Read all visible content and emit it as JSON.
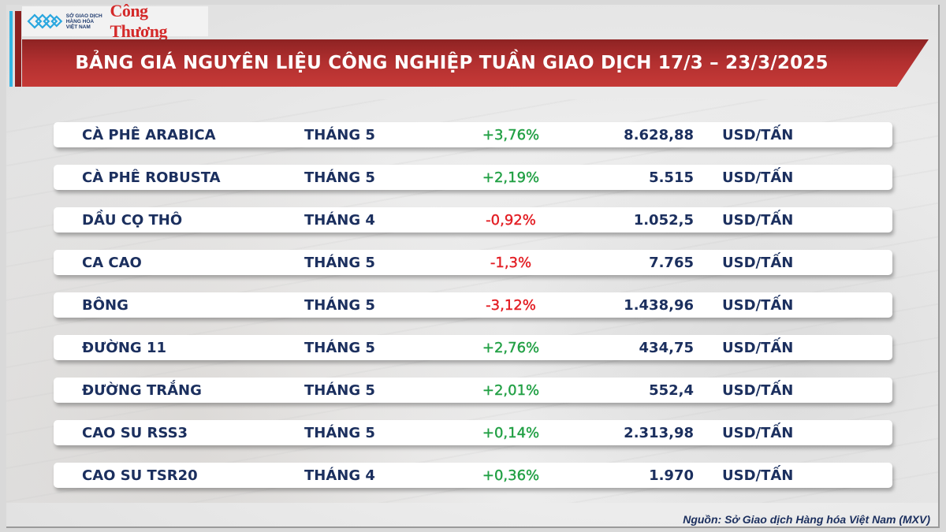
{
  "header": {
    "logo_org_line1": "SỞ GIAO DỊCH",
    "logo_org_line2": "HÀNG HÓA",
    "logo_org_line3": "VIỆT NAM",
    "logo_brand": "Công Thương",
    "title": "BẢNG GIÁ NGUYÊN LIỆU CÔNG NGHIỆP TUẦN GIAO DỊCH 17/3 – 23/3/2025"
  },
  "colors": {
    "banner_red": "#b33030",
    "text_navy": "#1b2f5e",
    "up_green": "#22a045",
    "down_red": "#e31e24",
    "accent_blue": "#33b5e5"
  },
  "rows": [
    {
      "name": "CÀ PHÊ ARABICA",
      "month": "THÁNG 5",
      "change": "+3,76%",
      "direction": "up",
      "price": "8.628,88",
      "unit": "USD/TẤN"
    },
    {
      "name": "CÀ PHÊ ROBUSTA",
      "month": "THÁNG 5",
      "change": "+2,19%",
      "direction": "up",
      "price": "5.515",
      "unit": "USD/TẤN"
    },
    {
      "name": "DẦU CỌ THÔ",
      "month": "THÁNG 4",
      "change": "-0,92%",
      "direction": "down",
      "price": "1.052,5",
      "unit": "USD/TẤN"
    },
    {
      "name": "CA CAO",
      "month": "THÁNG 5",
      "change": "-1,3%",
      "direction": "down",
      "price": "7.765",
      "unit": "USD/TẤN"
    },
    {
      "name": "BÔNG",
      "month": "THÁNG 5",
      "change": "-3,12%",
      "direction": "down",
      "price": "1.438,96",
      "unit": "USD/TẤN"
    },
    {
      "name": "ĐƯỜNG 11",
      "month": "THÁNG 5",
      "change": "+2,76%",
      "direction": "up",
      "price": "434,75",
      "unit": "USD/TẤN"
    },
    {
      "name": "ĐƯỜNG TRẮNG",
      "month": "THÁNG 5",
      "change": "+2,01%",
      "direction": "up",
      "price": "552,4",
      "unit": "USD/TẤN"
    },
    {
      "name": "CAO SU RSS3",
      "month": "THÁNG 5",
      "change": "+0,14%",
      "direction": "up",
      "price": "2.313,98",
      "unit": "USD/TẤN"
    },
    {
      "name": "CAO SU TSR20",
      "month": "THÁNG 4",
      "change": "+0,36%",
      "direction": "up",
      "price": "1.970",
      "unit": "USD/TẤN"
    }
  ],
  "footer": {
    "source": "Nguồn: Sở Giao dịch Hàng hóa Việt Nam (MXV)"
  }
}
